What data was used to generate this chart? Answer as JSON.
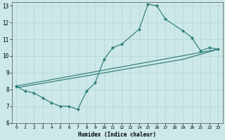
{
  "xlabel": "Humidex (Indice chaleur)",
  "bg_color": "#cce8e8",
  "grid_color": "#b8d8d8",
  "line_color": "#2e7d7a",
  "xlim": [
    -0.5,
    23.5
  ],
  "ylim": [
    6,
    13.2
  ],
  "xticks": [
    0,
    1,
    2,
    3,
    4,
    5,
    6,
    7,
    8,
    9,
    10,
    11,
    12,
    13,
    14,
    15,
    16,
    17,
    18,
    19,
    20,
    21,
    22,
    23
  ],
  "yticks": [
    6,
    7,
    8,
    9,
    10,
    11,
    12,
    13
  ],
  "line1_x": [
    0,
    1,
    2,
    3,
    4,
    5,
    6,
    7,
    8,
    9,
    10,
    11,
    12,
    14,
    15,
    16,
    17,
    19,
    20,
    21,
    22,
    23
  ],
  "line1_y": [
    8.2,
    7.9,
    7.8,
    7.5,
    7.2,
    7.0,
    7.0,
    6.8,
    7.9,
    8.4,
    9.8,
    10.5,
    10.7,
    11.6,
    13.1,
    13.0,
    12.2,
    11.5,
    11.1,
    10.3,
    10.5,
    10.4
  ],
  "line2_x": [
    0,
    23
  ],
  "line2_y": [
    8.2,
    10.4
  ],
  "line3_x": [
    0,
    19,
    23
  ],
  "line3_y": [
    8.1,
    9.8,
    10.4
  ],
  "marker_x": [
    0,
    1,
    2,
    3,
    4,
    5,
    6,
    7,
    8,
    9,
    10,
    11,
    12,
    14,
    15,
    16,
    17,
    19,
    20,
    21,
    22,
    23
  ],
  "marker_y": [
    8.2,
    7.9,
    7.8,
    7.5,
    7.2,
    7.0,
    7.0,
    6.8,
    7.9,
    8.4,
    9.8,
    10.5,
    10.7,
    11.6,
    13.1,
    13.0,
    12.2,
    11.5,
    11.1,
    10.3,
    10.5,
    10.4
  ]
}
